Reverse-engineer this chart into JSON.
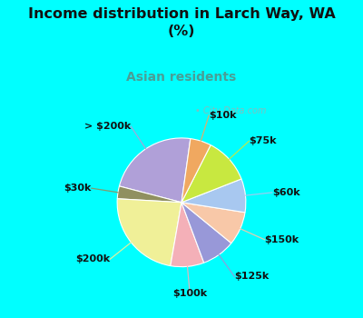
{
  "title": "Income distribution in Larch Way, WA\n(%)",
  "subtitle": "Asian residents",
  "title_color": "#111111",
  "subtitle_color": "#4a9e96",
  "bg_cyan": "#00ffff",
  "bg_chart_gradient_left": "#c8e8d8",
  "bg_chart_gradient_right": "#e8f4f0",
  "watermark": "• City-Data.com",
  "labels": [
    "> $200k",
    "$30k",
    "$200k",
    "$100k",
    "$125k",
    "$150k",
    "$60k",
    "$75k",
    "$10k"
  ],
  "values": [
    22,
    3,
    22,
    8,
    8,
    8,
    8,
    11,
    5
  ],
  "colors": [
    "#b0a0d8",
    "#909060",
    "#f0f098",
    "#f4b0b8",
    "#9898d8",
    "#f8c8a8",
    "#a8c8f0",
    "#c8e840",
    "#f0a860"
  ],
  "startangle": 82,
  "label_fontsize": 8.0
}
